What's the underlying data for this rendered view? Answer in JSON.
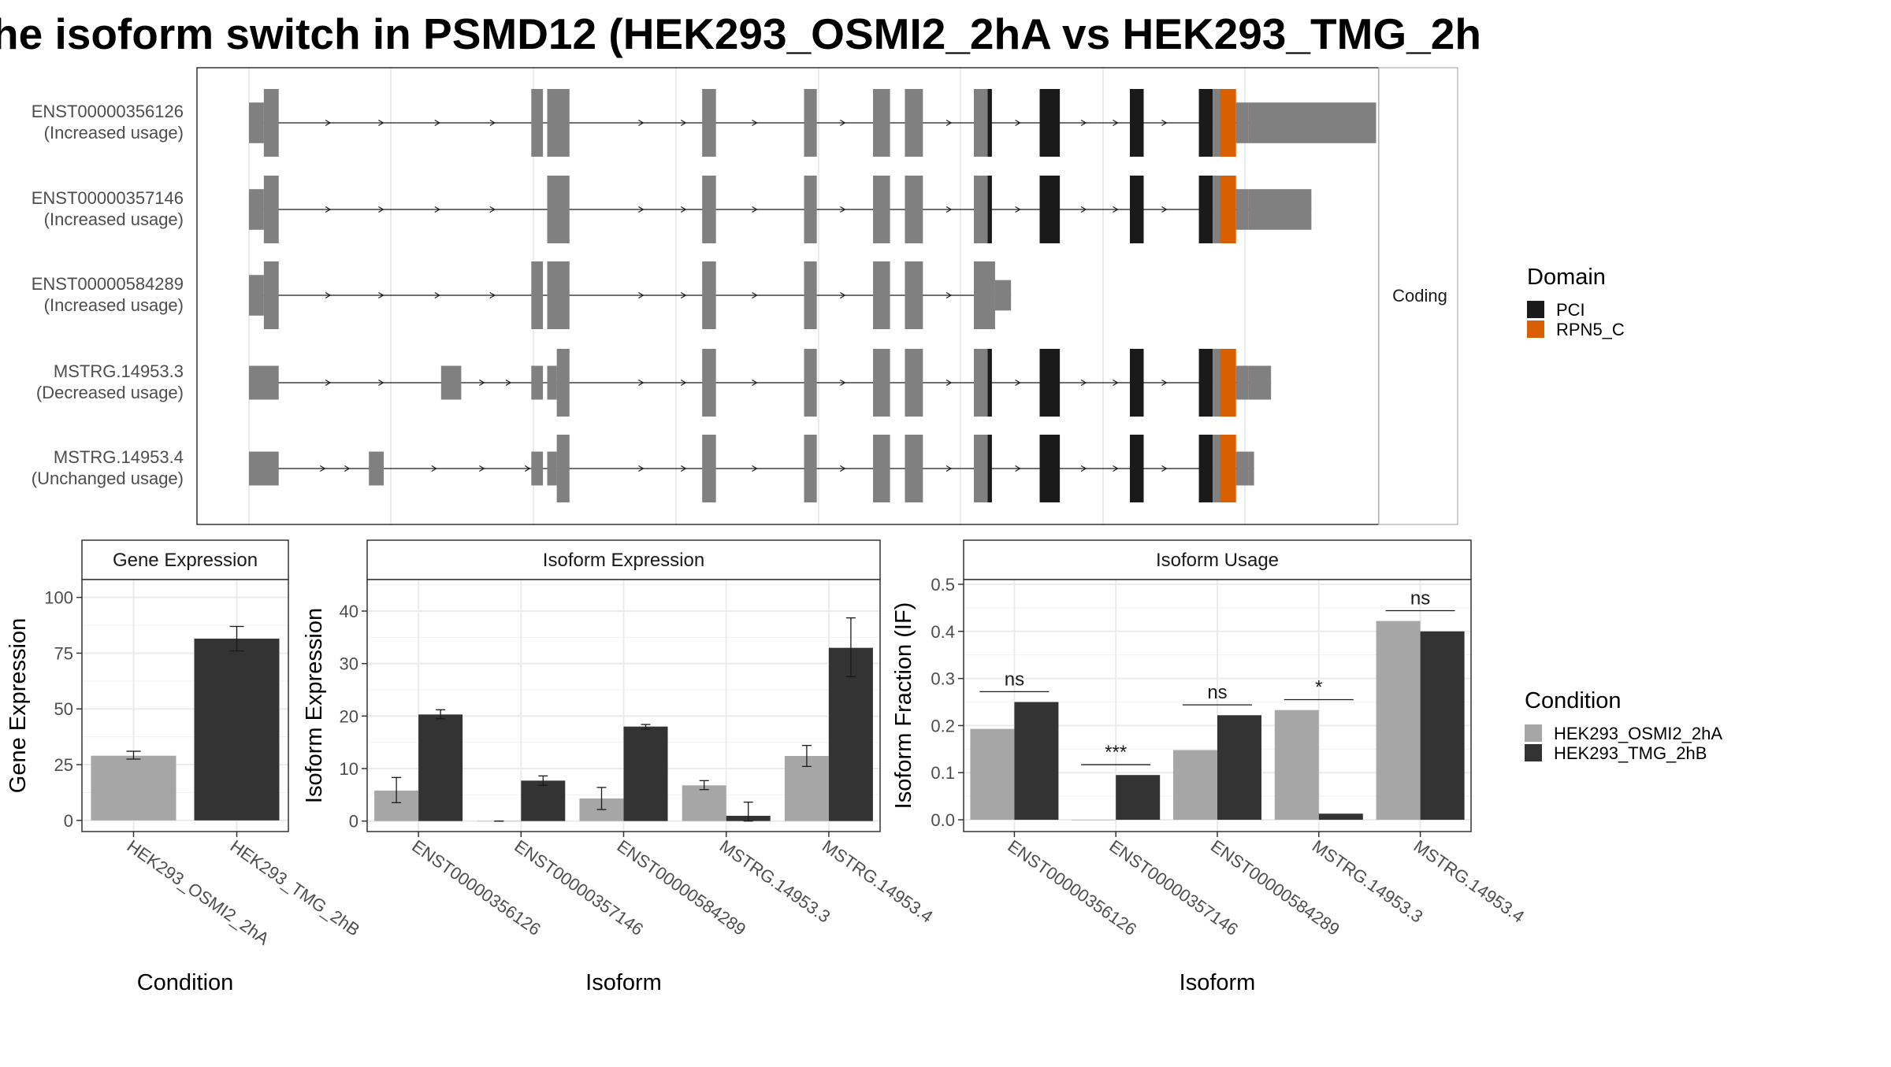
{
  "title": "he isoform switch in PSMD12 (HEK293_OSMI2_2hA vs HEK293_TMG_2h",
  "colors": {
    "exon": "#808080",
    "pci": "#1a1a1a",
    "rpn5": "#d95f02",
    "cond1": "#a6a6a6",
    "cond2": "#333333"
  },
  "structure": {
    "facet_label": "Coding",
    "x_domain": [
      0,
      100
    ],
    "isoforms": [
      {
        "id": "ENST00000356126",
        "usage": "(Increased usage)",
        "exons": [
          [
            0,
            1.4,
            0.6
          ],
          [
            1.4,
            2.8,
            1
          ],
          [
            26.6,
            27.7,
            1
          ],
          [
            28.1,
            30.2,
            1
          ],
          [
            42.7,
            44,
            1
          ],
          [
            52.3,
            53.5,
            1
          ],
          [
            58.8,
            60.4,
            1
          ],
          [
            61.8,
            63.5,
            1
          ],
          [
            68.3,
            69.6,
            1
          ],
          [
            69.6,
            70,
            1,
            "PCI"
          ],
          [
            74.5,
            76.4,
            1,
            "PCI"
          ],
          [
            83,
            84.3,
            1,
            "PCI"
          ],
          [
            89.5,
            90.8,
            1,
            "PCI"
          ],
          [
            90.8,
            91.5,
            1
          ],
          [
            91.5,
            93,
            1,
            "RPN5_C"
          ],
          [
            93,
            94.2,
            0.6
          ],
          [
            94.2,
            106.2,
            0.6
          ]
        ],
        "arrows": [
          7.5,
          12.5,
          17.8,
          23,
          37,
          41,
          47.7,
          56,
          66,
          72.5,
          78.7,
          81.7,
          86.3
        ]
      },
      {
        "id": "ENST00000357146",
        "usage": "(Increased usage)",
        "exons": [
          [
            0,
            1.4,
            0.6
          ],
          [
            1.4,
            2.8,
            1
          ],
          [
            28.1,
            30.2,
            1
          ],
          [
            42.7,
            44,
            1
          ],
          [
            52.3,
            53.5,
            1
          ],
          [
            58.8,
            60.4,
            1
          ],
          [
            61.8,
            63.5,
            1
          ],
          [
            68.3,
            69.6,
            1
          ],
          [
            69.6,
            70,
            1,
            "PCI"
          ],
          [
            74.5,
            76.4,
            1,
            "PCI"
          ],
          [
            83,
            84.3,
            1,
            "PCI"
          ],
          [
            89.5,
            90.8,
            1,
            "PCI"
          ],
          [
            90.8,
            91.5,
            1
          ],
          [
            91.5,
            93,
            1,
            "RPN5_C"
          ],
          [
            93,
            94.2,
            0.6
          ],
          [
            94.2,
            100.1,
            0.6
          ]
        ],
        "arrows": [
          7.5,
          12.5,
          17.8,
          23,
          37,
          41,
          47.7,
          56,
          66,
          72.5,
          78.7,
          81.7,
          86.3
        ]
      },
      {
        "id": "ENST00000584289",
        "usage": "(Increased usage)",
        "exons": [
          [
            0,
            1.4,
            0.6
          ],
          [
            1.4,
            2.8,
            1
          ],
          [
            26.6,
            27.7,
            1
          ],
          [
            28.1,
            30.2,
            1
          ],
          [
            42.7,
            44,
            1
          ],
          [
            52.3,
            53.5,
            1
          ],
          [
            58.8,
            60.4,
            1
          ],
          [
            61.8,
            63.5,
            1
          ],
          [
            68.3,
            70.3,
            1
          ],
          [
            70.3,
            71.8,
            0.45
          ]
        ],
        "arrows": [
          7.5,
          12.5,
          17.8,
          23,
          37,
          41,
          47.7,
          56,
          66
        ]
      },
      {
        "id": "MSTRG.14953.3",
        "usage": "(Decreased usage)",
        "exons": [
          [
            0,
            2.8,
            0.5
          ],
          [
            18.1,
            20,
            0.5
          ],
          [
            26.6,
            27.7,
            0.5
          ],
          [
            28.1,
            29,
            0.5
          ],
          [
            29,
            30.2,
            1
          ],
          [
            42.7,
            44,
            1
          ],
          [
            52.3,
            53.5,
            1
          ],
          [
            58.8,
            60.4,
            1
          ],
          [
            61.8,
            63.5,
            1
          ],
          [
            68.3,
            69.6,
            1
          ],
          [
            69.6,
            70,
            1,
            "PCI"
          ],
          [
            74.5,
            76.4,
            1,
            "PCI"
          ],
          [
            83,
            84.3,
            1,
            "PCI"
          ],
          [
            89.5,
            90.8,
            1,
            "PCI"
          ],
          [
            90.8,
            91.5,
            1
          ],
          [
            91.5,
            93,
            1,
            "RPN5_C"
          ],
          [
            93,
            94.2,
            0.5
          ],
          [
            94.2,
            96.3,
            0.5
          ]
        ],
        "arrows": [
          7.5,
          12.5,
          22,
          24.5,
          37,
          41,
          47.7,
          56,
          66,
          72.5,
          78.7,
          81.7,
          86.3
        ]
      },
      {
        "id": "MSTRG.14953.4",
        "usage": "(Unchanged usage)",
        "exons": [
          [
            0,
            2.8,
            0.5
          ],
          [
            11.3,
            12.7,
            0.5
          ],
          [
            26.6,
            27.7,
            0.5
          ],
          [
            28.1,
            29,
            0.5
          ],
          [
            29,
            30.2,
            1
          ],
          [
            42.7,
            44,
            1
          ],
          [
            52.3,
            53.5,
            1
          ],
          [
            58.8,
            60.4,
            1
          ],
          [
            61.8,
            63.5,
            1
          ],
          [
            68.3,
            69.6,
            1
          ],
          [
            69.6,
            70,
            1,
            "PCI"
          ],
          [
            74.5,
            76.4,
            1,
            "PCI"
          ],
          [
            83,
            84.3,
            1,
            "PCI"
          ],
          [
            89.5,
            90.8,
            1,
            "PCI"
          ],
          [
            90.8,
            91.5,
            1
          ],
          [
            91.5,
            93,
            1,
            "RPN5_C"
          ],
          [
            93,
            94.2,
            0.5
          ],
          [
            94.2,
            94.7,
            0.5
          ]
        ],
        "arrows": [
          7,
          9.3,
          17.5,
          22,
          26.3,
          37,
          41,
          47.7,
          56,
          66,
          72.5,
          78.7,
          81.7,
          86.3
        ]
      }
    ]
  },
  "legend_domain": {
    "title": "Domain",
    "items": [
      {
        "name": "PCI",
        "key": "pci"
      },
      {
        "name": "RPN5_C",
        "key": "rpn5"
      }
    ]
  },
  "legend_condition": {
    "title": "Condition",
    "items": [
      {
        "name": "HEK293_OSMI2_2hA",
        "key": "cond1"
      },
      {
        "name": "HEK293_TMG_2hB",
        "key": "cond2"
      }
    ]
  },
  "chart_data": [
    {
      "type": "bar",
      "title": "Gene Expression",
      "xlabel": "Condition",
      "ylabel": "Gene Expression",
      "ylim": [
        -5,
        108
      ],
      "yticks": [
        0,
        25,
        50,
        75,
        100
      ],
      "categories": [
        "HEK293_OSMI2_2hA",
        "HEK293_TMG_2hB"
      ],
      "values": [
        29,
        81.5
      ],
      "errors": [
        [
          27.5,
          31
        ],
        [
          76,
          87
        ]
      ]
    },
    {
      "type": "bar",
      "title": "Isoform Expression",
      "xlabel": "Isoform",
      "ylabel": "Isoform Expression",
      "ylim": [
        -2,
        46
      ],
      "yticks": [
        0,
        10,
        20,
        30,
        40
      ],
      "categories": [
        "ENST00000356126",
        "ENST00000357146",
        "ENST00000584289",
        "MSTRG.14953.3",
        "MSTRG.14953.4"
      ],
      "series": [
        {
          "name": "HEK293_OSMI2_2hA",
          "values": [
            5.8,
            0,
            4.3,
            6.8,
            12.4
          ],
          "errors": [
            [
              3.5,
              8.3
            ],
            [
              0,
              0
            ],
            [
              2.2,
              6.4
            ],
            [
              6,
              7.7
            ],
            [
              10.4,
              14.4
            ]
          ]
        },
        {
          "name": "HEK293_TMG_2hB",
          "values": [
            20.3,
            7.7,
            18,
            1,
            33
          ],
          "errors": [
            [
              19.5,
              21.2
            ],
            [
              6.8,
              8.6
            ],
            [
              17.5,
              18.4
            ],
            [
              0,
              3.6
            ],
            [
              27.5,
              38.7
            ]
          ]
        }
      ]
    },
    {
      "type": "bar",
      "title": "Isoform Usage",
      "xlabel": "Isoform",
      "ylabel": "Isoform Fraction (IF)",
      "ylim": [
        -0.025,
        0.51
      ],
      "yticks": [
        0,
        0.1,
        0.2,
        0.3,
        0.4,
        0.5
      ],
      "ytick_labels": [
        "0.0",
        "0.1",
        "0.2",
        "0.3",
        "0.4",
        "0.5"
      ],
      "categories": [
        "ENST00000356126",
        "ENST00000357146",
        "ENST00000584289",
        "MSTRG.14953.3",
        "MSTRG.14953.4"
      ],
      "series": [
        {
          "name": "HEK293_OSMI2_2hA",
          "values": [
            0.193,
            0,
            0.148,
            0.233,
            0.422
          ]
        },
        {
          "name": "HEK293_TMG_2hB",
          "values": [
            0.25,
            0.095,
            0.222,
            0.013,
            0.4
          ]
        }
      ],
      "significance": [
        {
          "label": "ns",
          "y": 0.272
        },
        {
          "label": "***",
          "y": 0.117
        },
        {
          "label": "ns",
          "y": 0.244
        },
        {
          "label": "*",
          "y": 0.255
        },
        {
          "label": "ns",
          "y": 0.444
        }
      ]
    }
  ]
}
